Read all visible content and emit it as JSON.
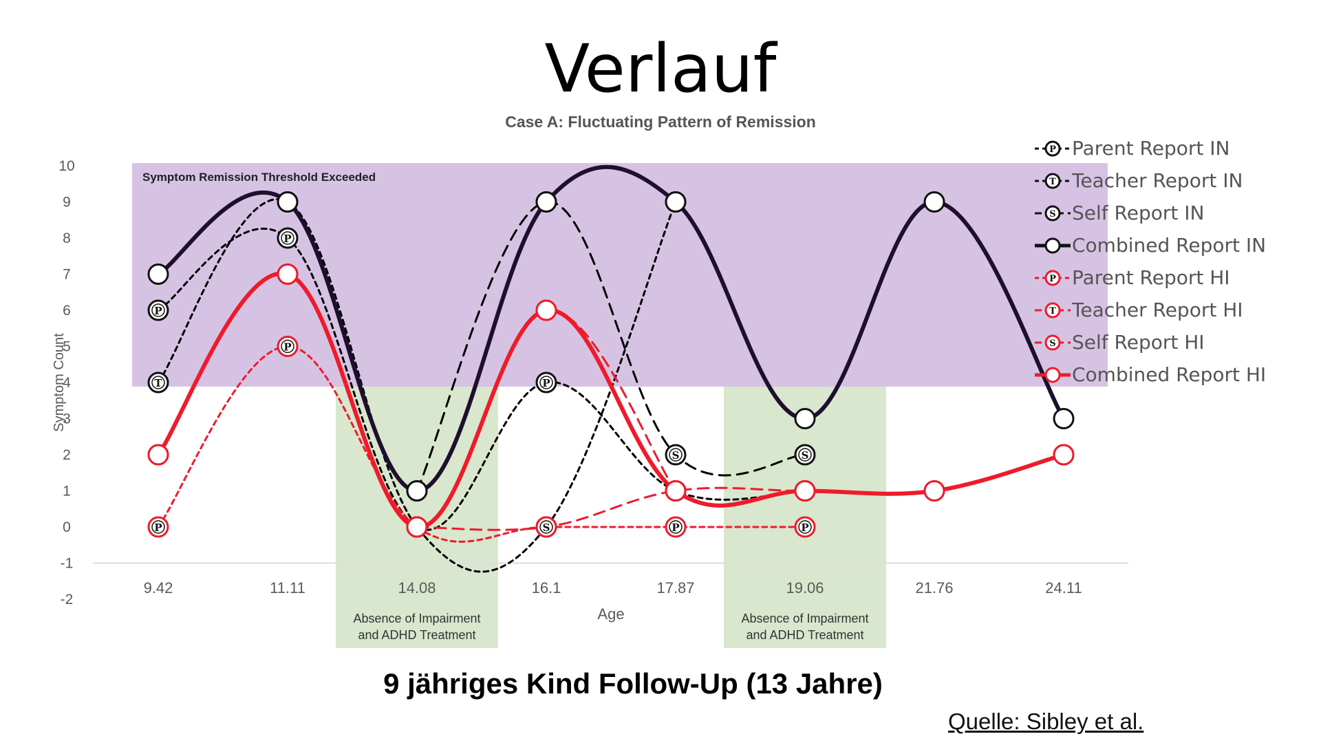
{
  "slide": {
    "title": "Verlauf",
    "footer": "9 jähriges Kind Follow-Up (13 Jahre)",
    "source": "Quelle: Sibley et al."
  },
  "chart_data": {
    "type": "line",
    "title": "Case A: Fluctuating Pattern of Remission",
    "xlabel": "Age",
    "ylabel": "Symptom Count",
    "categories": [
      "9.42",
      "11.11",
      "14.08",
      "16.1",
      "17.87",
      "19.06",
      "21.76",
      "24.11"
    ],
    "ylim": [
      -2,
      10
    ],
    "yticks": [
      -2,
      -1,
      0,
      1,
      2,
      3,
      4,
      5,
      6,
      7,
      8,
      9,
      10
    ],
    "threshold": 4,
    "threshold_label": "Symptom Remission Threshold Exceeded",
    "shaded_regions": [
      {
        "category": "14.08",
        "label": "Absence of Impairment and ADHD Treatment"
      },
      {
        "category": "19.06",
        "label": "Absence of Impairment and ADHD Treatment"
      }
    ],
    "series": [
      {
        "name": "Parent Report IN",
        "marker": "P",
        "color": "#000000",
        "dash": "short",
        "values": [
          6,
          8,
          0,
          4,
          1,
          1,
          null,
          null
        ]
      },
      {
        "name": "Teacher Report IN",
        "marker": "T",
        "color": "#000000",
        "dash": "short",
        "values": [
          4,
          9,
          0,
          0,
          9,
          null,
          null,
          null
        ]
      },
      {
        "name": "Self Report IN",
        "marker": "S",
        "color": "#000000",
        "dash": "long",
        "values": [
          null,
          null,
          1,
          9,
          2,
          2,
          null,
          null
        ]
      },
      {
        "name": "Combined Report IN",
        "marker": "",
        "color": "#1e0f2e",
        "dash": "solid",
        "values": [
          7,
          9,
          1,
          9,
          9,
          3,
          9,
          3
        ]
      },
      {
        "name": "Parent Report HI",
        "marker": "P",
        "color": "#ee1b2b",
        "dash": "short",
        "values": [
          0,
          5,
          0,
          0,
          0,
          0,
          null,
          null
        ]
      },
      {
        "name": "Teacher Report HI",
        "marker": "T",
        "color": "#ee1b2b",
        "dash": "long",
        "values": [
          2,
          7,
          0,
          6,
          1,
          null,
          null,
          null
        ]
      },
      {
        "name": "Self Report HI",
        "marker": "S",
        "color": "#ee1b2b",
        "dash": "long",
        "values": [
          null,
          null,
          0,
          0,
          1,
          1,
          1,
          2
        ]
      },
      {
        "name": "Combined Report HI",
        "marker": "",
        "color": "#ee1b2b",
        "dash": "solid",
        "values": [
          2,
          7,
          0,
          6,
          1,
          1,
          1,
          2
        ]
      }
    ],
    "legend_position": "top-right",
    "colors": {
      "threshold_band": "#d6c3e4",
      "treatment_band": "#d8e7cd",
      "axis": "#dddddd",
      "tick_text": "#595959"
    }
  }
}
